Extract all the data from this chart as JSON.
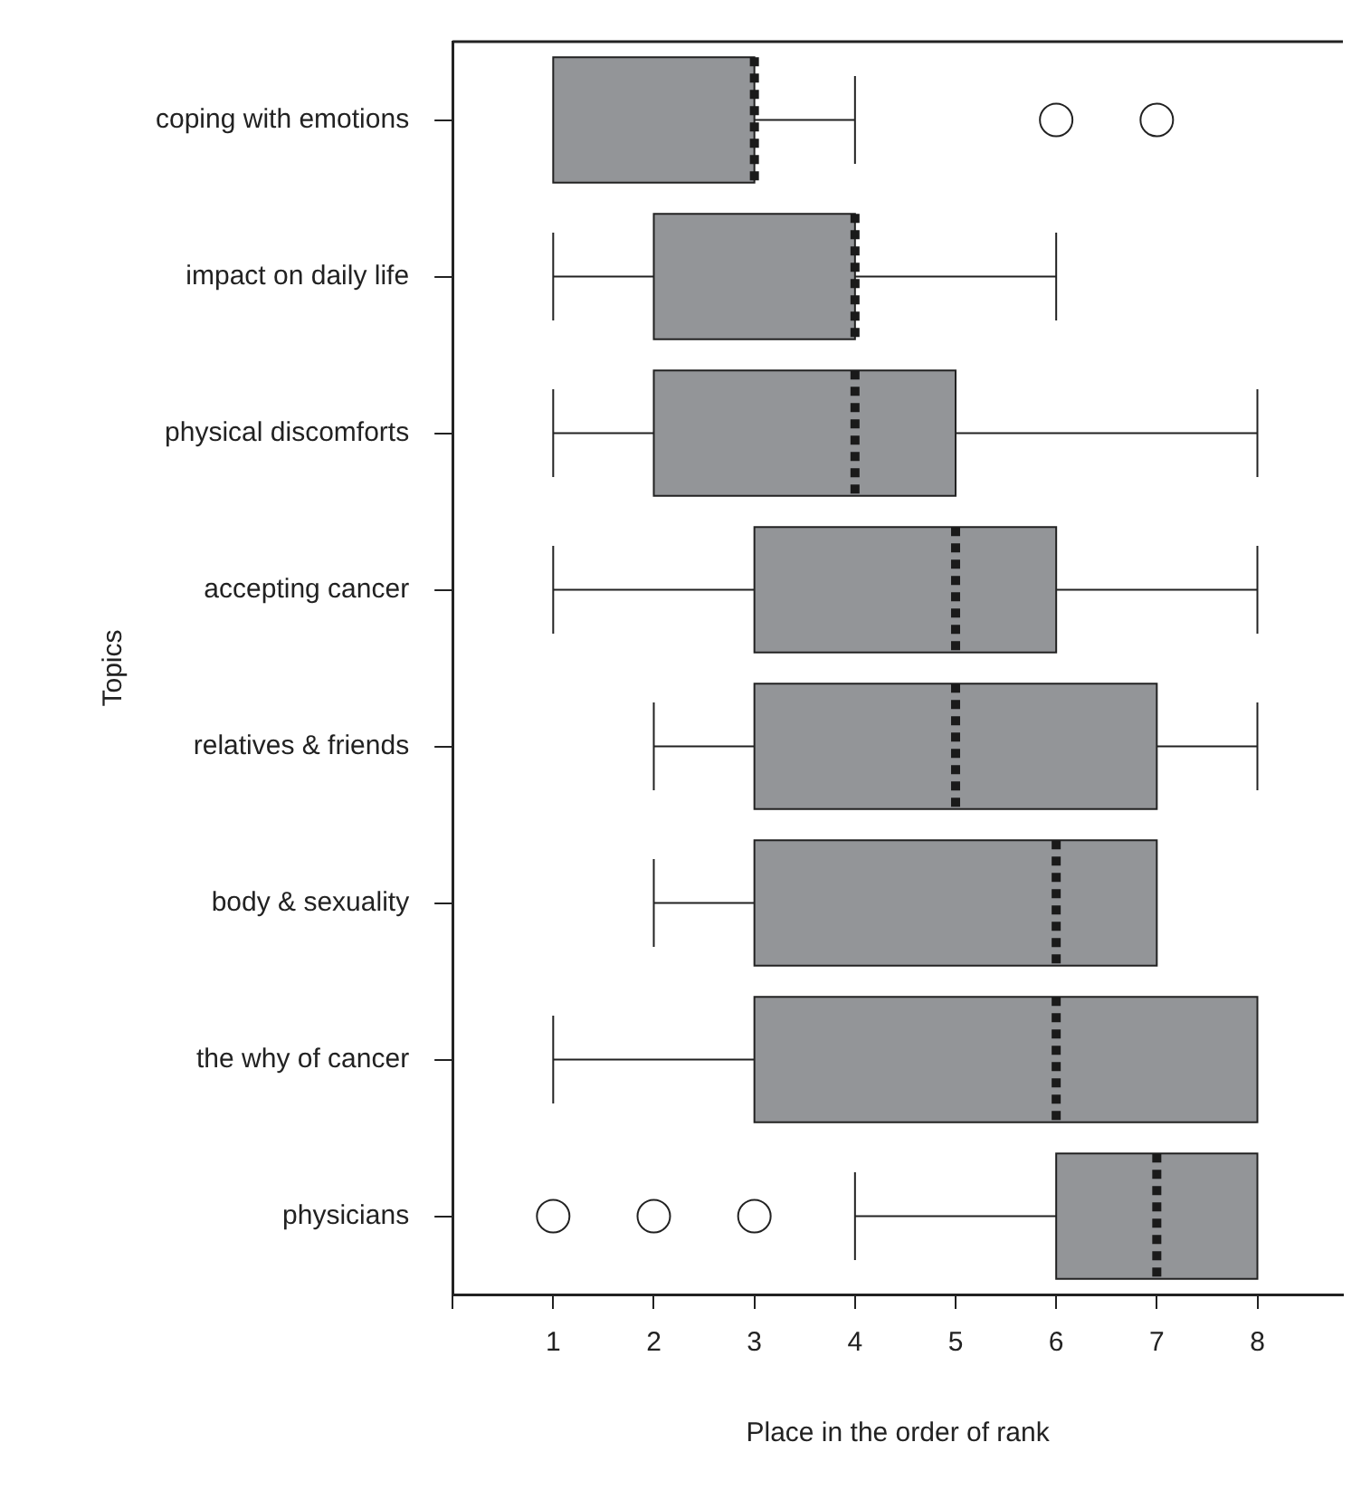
{
  "chart_data": {
    "type": "box",
    "orientation": "horizontal",
    "xlabel": "Place in the order of rank",
    "ylabel": "Topics",
    "color": "#939598",
    "marker": "circle",
    "grid": false,
    "legend": false,
    "categories": [
      "coping with emotions",
      "impact on daily life",
      "physical discomforts",
      "accepting cancer",
      "relatives & friends",
      "body & sexuality",
      "the why of cancer",
      "physicians"
    ],
    "boxes": [
      {
        "low": 1,
        "q1": 1,
        "median": 3,
        "q3": 3,
        "high": 4,
        "outliers": [
          6,
          7
        ]
      },
      {
        "low": 1,
        "q1": 2,
        "median": 4,
        "q3": 4,
        "high": 6
      },
      {
        "low": 1,
        "q1": 2,
        "median": 4,
        "q3": 5,
        "high": 8
      },
      {
        "low": 1,
        "q1": 3,
        "median": 5,
        "q3": 6,
        "high": 8
      },
      {
        "low": 2,
        "q1": 3,
        "median": 5,
        "q3": 7,
        "high": 8
      },
      {
        "low": 2,
        "q1": 3,
        "median": 6,
        "q3": 7,
        "high": 7
      },
      {
        "low": 1,
        "q1": 3,
        "median": 6,
        "q3": 8,
        "high": 8
      },
      {
        "low": 4,
        "q1": 6,
        "median": 7,
        "q3": 8,
        "high": 8,
        "outliers": [
          1,
          2,
          3
        ]
      }
    ],
    "xlim": [
      0,
      8.85
    ],
    "xticks": [
      {
        "value": 0,
        "label": null
      },
      1,
      2,
      3,
      4,
      5,
      6,
      7,
      8
    ]
  }
}
